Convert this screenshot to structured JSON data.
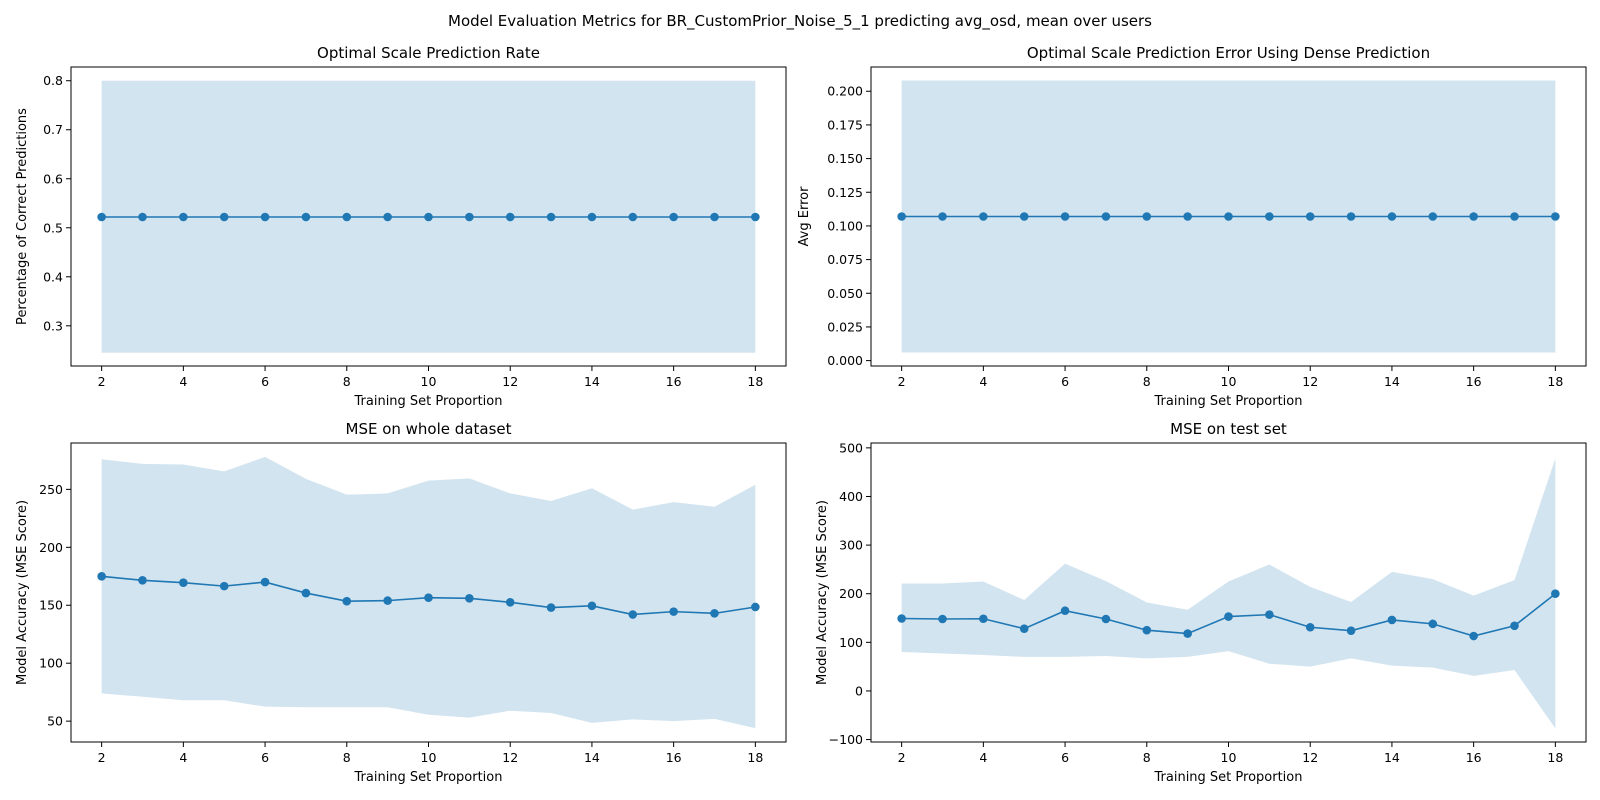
{
  "figure_title": "Model Evaluation Metrics for BR_CustomPrior_Noise_5_1 predicting avg_osd, mean over users",
  "colors": {
    "line": "#1f77b4",
    "band": "#1f77b4",
    "band_alpha": 0.2
  },
  "chart_data": [
    {
      "type": "line",
      "title": "Optimal Scale Prediction Rate",
      "xlabel": "Training Set Proportion",
      "ylabel": "Percentage of Correct Predictions",
      "x": [
        2,
        3,
        4,
        5,
        6,
        7,
        8,
        9,
        10,
        11,
        12,
        13,
        14,
        15,
        16,
        17,
        18
      ],
      "series": [
        {
          "values": [
            0.522,
            0.522,
            0.522,
            0.522,
            0.522,
            0.522,
            0.522,
            0.522,
            0.522,
            0.522,
            0.522,
            0.522,
            0.522,
            0.522,
            0.522,
            0.522,
            0.522
          ]
        }
      ],
      "band_upper": [
        0.8,
        0.8,
        0.8,
        0.8,
        0.8,
        0.8,
        0.8,
        0.8,
        0.8,
        0.8,
        0.8,
        0.8,
        0.8,
        0.8,
        0.8,
        0.8,
        0.8
      ],
      "band_lower": [
        0.245,
        0.245,
        0.245,
        0.245,
        0.245,
        0.245,
        0.245,
        0.245,
        0.245,
        0.245,
        0.245,
        0.245,
        0.245,
        0.245,
        0.245,
        0.245,
        0.245
      ],
      "xlim": [
        1.25,
        18.75
      ],
      "ylim": [
        0.218,
        0.828
      ],
      "xticks": [
        2,
        4,
        6,
        8,
        10,
        12,
        14,
        16,
        18
      ],
      "yticks": [
        0.3,
        0.4,
        0.5,
        0.6,
        0.7,
        0.8
      ],
      "ytick_labels": [
        "0.3",
        "0.4",
        "0.5",
        "0.6",
        "0.7",
        "0.8"
      ]
    },
    {
      "type": "line",
      "title": "Optimal Scale Prediction Error Using Dense Prediction",
      "xlabel": "Training Set Proportion",
      "ylabel": "Avg Error",
      "x": [
        2,
        3,
        4,
        5,
        6,
        7,
        8,
        9,
        10,
        11,
        12,
        13,
        14,
        15,
        16,
        17,
        18
      ],
      "series": [
        {
          "values": [
            0.107,
            0.107,
            0.107,
            0.107,
            0.107,
            0.107,
            0.107,
            0.107,
            0.107,
            0.107,
            0.107,
            0.107,
            0.107,
            0.107,
            0.107,
            0.107,
            0.107
          ]
        }
      ],
      "band_upper": [
        0.208,
        0.208,
        0.208,
        0.208,
        0.208,
        0.208,
        0.208,
        0.208,
        0.208,
        0.208,
        0.208,
        0.208,
        0.208,
        0.208,
        0.208,
        0.208,
        0.208
      ],
      "band_lower": [
        0.006,
        0.006,
        0.006,
        0.006,
        0.006,
        0.006,
        0.006,
        0.006,
        0.006,
        0.006,
        0.006,
        0.006,
        0.006,
        0.006,
        0.006,
        0.006,
        0.006
      ],
      "xlim": [
        1.25,
        18.75
      ],
      "ylim": [
        -0.004,
        0.218
      ],
      "xticks": [
        2,
        4,
        6,
        8,
        10,
        12,
        14,
        16,
        18
      ],
      "yticks": [
        0,
        0.025,
        0.05,
        0.075,
        0.1,
        0.125,
        0.15,
        0.175,
        0.2
      ],
      "ytick_labels": [
        "0.000",
        "0.025",
        "0.050",
        "0.075",
        "0.100",
        "0.125",
        "0.150",
        "0.175",
        "0.200"
      ]
    },
    {
      "type": "line",
      "title": "MSE on whole dataset",
      "xlabel": "Training Set Proportion",
      "ylabel": "Model Accuracy (MSE Score)",
      "x": [
        2,
        3,
        4,
        5,
        6,
        7,
        8,
        9,
        10,
        11,
        12,
        13,
        14,
        15,
        16,
        17,
        18
      ],
      "series": [
        {
          "values": [
            175,
            171.5,
            169.5,
            166.5,
            170,
            160.5,
            153.5,
            154,
            156.5,
            156,
            152.5,
            148,
            149.5,
            142,
            144.5,
            143,
            148.5
          ]
        }
      ],
      "band_upper": [
        276,
        272,
        271.5,
        265.5,
        278,
        259,
        245.5,
        246.5,
        257.5,
        259.5,
        246.5,
        240,
        251,
        232.5,
        239,
        235,
        254
      ],
      "band_lower": [
        74,
        71,
        68,
        68,
        62.5,
        62,
        62,
        62,
        55.5,
        53,
        59,
        57,
        48.5,
        51.5,
        50,
        52,
        44
      ],
      "xlim": [
        1.25,
        18.75
      ],
      "ylim": [
        32,
        290
      ],
      "xticks": [
        2,
        4,
        6,
        8,
        10,
        12,
        14,
        16,
        18
      ],
      "yticks": [
        50,
        100,
        150,
        200,
        250
      ],
      "ytick_labels": [
        "50",
        "100",
        "150",
        "200",
        "250"
      ]
    },
    {
      "type": "line",
      "title": "MSE on test set",
      "xlabel": "Training Set Proportion",
      "ylabel": "Model Accuracy (MSE Score)",
      "x": [
        2,
        3,
        4,
        5,
        6,
        7,
        8,
        9,
        10,
        11,
        12,
        13,
        14,
        15,
        16,
        17,
        18
      ],
      "series": [
        {
          "values": [
            149,
            148,
            148.5,
            128,
            165,
            148,
            125,
            118,
            153,
            157,
            131,
            124,
            146,
            138,
            113,
            134,
            200
          ]
        }
      ],
      "band_upper": [
        221,
        221,
        225,
        187,
        262,
        226,
        182,
        167,
        225,
        260,
        214,
        183,
        245,
        230,
        196,
        228,
        478
      ],
      "band_lower": [
        80,
        77,
        74,
        70,
        70,
        72,
        67,
        70,
        82,
        56,
        50,
        67,
        52,
        48,
        31,
        43,
        -77
      ],
      "xlim": [
        1.25,
        18.75
      ],
      "ylim": [
        -105,
        510
      ],
      "xticks": [
        2,
        4,
        6,
        8,
        10,
        12,
        14,
        16,
        18
      ],
      "yticks": [
        -100,
        0,
        100,
        200,
        300,
        400,
        500
      ],
      "ytick_labels": [
        "−100",
        "0",
        "100",
        "200",
        "300",
        "400",
        "500"
      ]
    }
  ]
}
